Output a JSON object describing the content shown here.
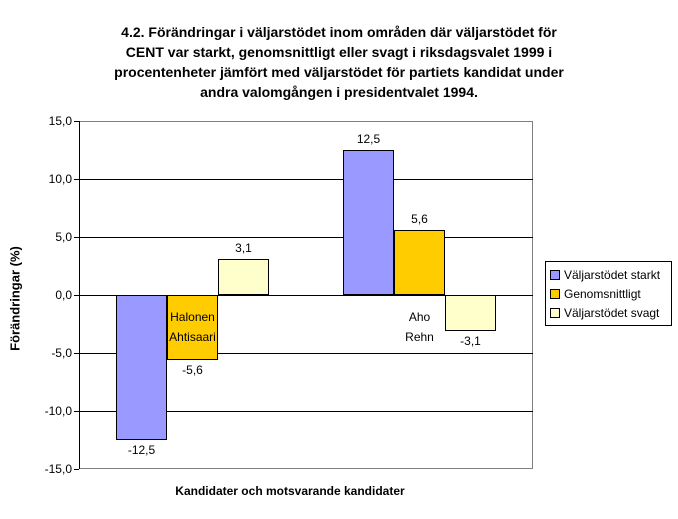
{
  "chart_data": {
    "type": "bar",
    "title": "4.2. Förändringar i väljarstödet inom områden där väljarstödet för CENT var starkt, genomsnittligt eller svagt i riksdagsvalet 1999 i procentenheter jämfört med väljarstödet för partiets kandidat under andra valomgången i presidentvalet 1994.",
    "title_lines": [
      "4.2. Förändringar i väljarstödet inom områden där väljarstödet för",
      "CENT var starkt, genomsnittligt eller svagt i riksdagsvalet 1999 i",
      "procentenheter jämfört med väljarstödet för partiets kandidat under",
      "andra valomgången i presidentvalet 1994."
    ],
    "xlabel": "Kandidater och motsvarande kandidater",
    "ylabel": "Förändringar (%)",
    "categories": [
      "Halonen Ahtisaari",
      "Aho Rehn"
    ],
    "series": [
      {
        "name": "Väljarstödet starkt",
        "color": "#9999FF",
        "values": [
          -12.5,
          12.5
        ],
        "labels": [
          "-12,5",
          "12,5"
        ]
      },
      {
        "name": "Genomsnittligt",
        "color": "#FFCC00",
        "values": [
          -5.6,
          5.6
        ],
        "labels": [
          "-5,6",
          "5,6"
        ]
      },
      {
        "name": "Väljarstödet svagt",
        "color": "#FFFFCC",
        "values": [
          3.1,
          -3.1
        ],
        "labels": [
          "3,1",
          "-3,1"
        ]
      }
    ],
    "ylim": [
      -15,
      15
    ],
    "ytick_step": 5,
    "yticks": [
      {
        "value": 15,
        "label": "15,0"
      },
      {
        "value": 10,
        "label": "10,0"
      },
      {
        "value": 5,
        "label": "5,0"
      },
      {
        "value": 0,
        "label": "0,0"
      },
      {
        "value": -5,
        "label": "-5,0"
      },
      {
        "value": -10,
        "label": "-10,0"
      },
      {
        "value": -15,
        "label": "-15,0"
      }
    ],
    "grid": true,
    "legend_position": "right",
    "colors": {
      "gridline": "#000000",
      "plot_border": "#808080",
      "axis": "#000000",
      "text": "#000000",
      "background": "#FFFFFF"
    }
  }
}
